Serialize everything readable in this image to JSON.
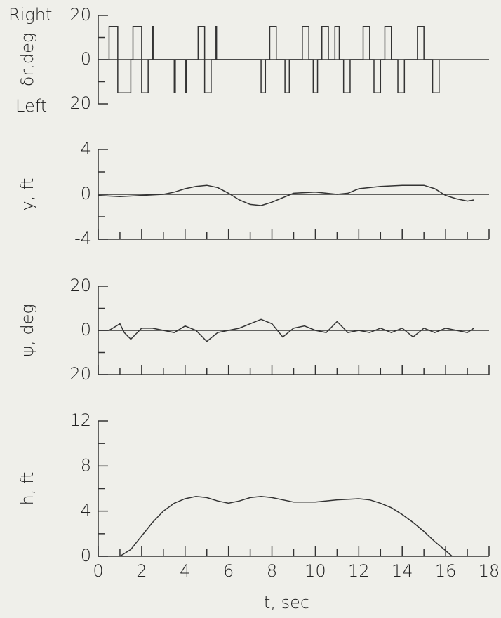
{
  "chart_data": [
    {
      "type": "step",
      "ylabel": "δr,deg",
      "annotations": [
        "Right",
        "Left"
      ],
      "xlim": [
        0,
        18
      ],
      "ylim": [
        -20,
        20
      ],
      "yticks": [
        {
          "value": 20,
          "label": "20"
        },
        0,
        {
          "value": -20,
          "label": "20"
        }
      ],
      "zero_line": true,
      "bottom_axis": false,
      "color": "#333333",
      "x": [
        0.5,
        0.5,
        0.9,
        0.9,
        0.9,
        0.9,
        1.5,
        1.5,
        1.6,
        1.6,
        2.0,
        2.0,
        2.0,
        2.0,
        2.3,
        2.3,
        2.5,
        2.5,
        2.55,
        2.55,
        3.5,
        3.5,
        3.55,
        3.55,
        4.0,
        4.0,
        4.05,
        4.05,
        4.6,
        4.6,
        4.9,
        4.9,
        4.9,
        4.9,
        5.2,
        5.2,
        5.4,
        5.4,
        5.45,
        5.45,
        7.5,
        7.5,
        7.7,
        7.7,
        7.9,
        7.9,
        8.2,
        8.2,
        8.6,
        8.6,
        8.8,
        8.8,
        9.4,
        9.4,
        9.7,
        9.7,
        9.9,
        9.9,
        10.1,
        10.1,
        10.3,
        10.3,
        10.6,
        10.6,
        10.9,
        10.9,
        11.1,
        11.1,
        11.3,
        11.3,
        11.6,
        11.6,
        12.2,
        12.2,
        12.5,
        12.5,
        12.7,
        12.7,
        13.0,
        13.0,
        13.2,
        13.2,
        13.5,
        13.5,
        13.8,
        13.8,
        14.1,
        14.1,
        14.7,
        14.7,
        15.0,
        15.0,
        15.4,
        15.4,
        15.7,
        15.7
      ],
      "values": [
        0,
        15,
        15,
        0,
        0,
        -15,
        -15,
        0,
        0,
        15,
        15,
        0,
        0,
        -15,
        -15,
        0,
        0,
        15,
        15,
        0,
        0,
        -15,
        -15,
        0,
        0,
        -15,
        -15,
        0,
        0,
        15,
        15,
        0,
        0,
        -15,
        -15,
        0,
        0,
        15,
        15,
        0,
        0,
        -15,
        -15,
        0,
        0,
        15,
        15,
        0,
        0,
        -15,
        -15,
        0,
        0,
        15,
        15,
        0,
        0,
        -15,
        -15,
        0,
        0,
        15,
        15,
        0,
        0,
        15,
        15,
        0,
        0,
        -15,
        -15,
        0,
        0,
        15,
        15,
        0,
        0,
        -15,
        -15,
        0,
        0,
        15,
        15,
        0,
        0,
        -15,
        -15,
        0,
        0,
        15,
        15,
        0,
        0,
        -15,
        -15,
        0
      ]
    },
    {
      "type": "line",
      "ylabel": "y, ft",
      "xlim": [
        0,
        18
      ],
      "ylim": [
        -4,
        4
      ],
      "yticks": [
        4,
        0,
        -4
      ],
      "zero_line": true,
      "bottom_axis": true,
      "color": "#333333",
      "x": [
        0,
        1,
        2,
        3,
        3.5,
        4,
        4.5,
        5,
        5.5,
        6,
        6.5,
        7,
        7.5,
        8,
        9,
        10,
        11,
        11.5,
        12,
        13,
        14,
        15,
        15.5,
        16,
        16.5,
        17,
        17.3
      ],
      "values": [
        -0.1,
        -0.2,
        -0.1,
        0,
        0.2,
        0.5,
        0.7,
        0.8,
        0.6,
        0.1,
        -0.5,
        -0.9,
        -1,
        -0.7,
        0.1,
        0.2,
        0,
        0.1,
        0.5,
        0.7,
        0.8,
        0.8,
        0.5,
        -0.1,
        -0.4,
        -0.6,
        -0.5
      ]
    },
    {
      "type": "line",
      "ylabel": "ψ, deg",
      "xlim": [
        0,
        18
      ],
      "ylim": [
        -20,
        20
      ],
      "yticks": [
        20,
        0,
        -20
      ],
      "zero_line": true,
      "bottom_axis": true,
      "color": "#333333",
      "x": [
        0,
        0.5,
        1,
        1.2,
        1.5,
        2,
        2.5,
        3,
        3.5,
        4,
        4.5,
        5,
        5.5,
        6,
        6.5,
        7,
        7.5,
        8,
        8.5,
        9,
        9.5,
        10,
        10.5,
        11,
        11.5,
        12,
        12.5,
        13,
        13.5,
        14,
        14.5,
        15,
        15.5,
        16,
        16.5,
        17,
        17.3
      ],
      "values": [
        0,
        0,
        3,
        -1,
        -4,
        1,
        1,
        0,
        -1,
        2,
        0,
        -5,
        -1,
        0,
        1,
        3,
        5,
        3,
        -3,
        1,
        2,
        0,
        -1,
        4,
        -1,
        0,
        -1,
        1,
        -1,
        1,
        -3,
        1,
        -1,
        1,
        0,
        -1,
        1
      ]
    },
    {
      "type": "line",
      "ylabel": "h, ft",
      "xlabel": "t, sec",
      "xlim": [
        0,
        18
      ],
      "ylim": [
        0,
        12
      ],
      "xticks": [
        0,
        2,
        4,
        6,
        8,
        10,
        12,
        14,
        16,
        18
      ],
      "yticks": [
        12,
        8,
        4,
        0
      ],
      "zero_line": false,
      "bottom_axis": true,
      "color": "#333333",
      "x": [
        1,
        1.5,
        2,
        2.5,
        3,
        3.5,
        4,
        4.5,
        5,
        5.5,
        6,
        6.5,
        7,
        7.5,
        8,
        9,
        10,
        11,
        12,
        12.5,
        13,
        13.5,
        14,
        14.5,
        15,
        15.5,
        16,
        16.3
      ],
      "values": [
        0,
        0.6,
        1.8,
        3,
        4,
        4.7,
        5.1,
        5.3,
        5.2,
        4.9,
        4.7,
        4.9,
        5.2,
        5.3,
        5.2,
        4.8,
        4.8,
        5,
        5.1,
        5,
        4.7,
        4.3,
        3.7,
        3,
        2.2,
        1.3,
        0.5,
        0
      ]
    }
  ]
}
